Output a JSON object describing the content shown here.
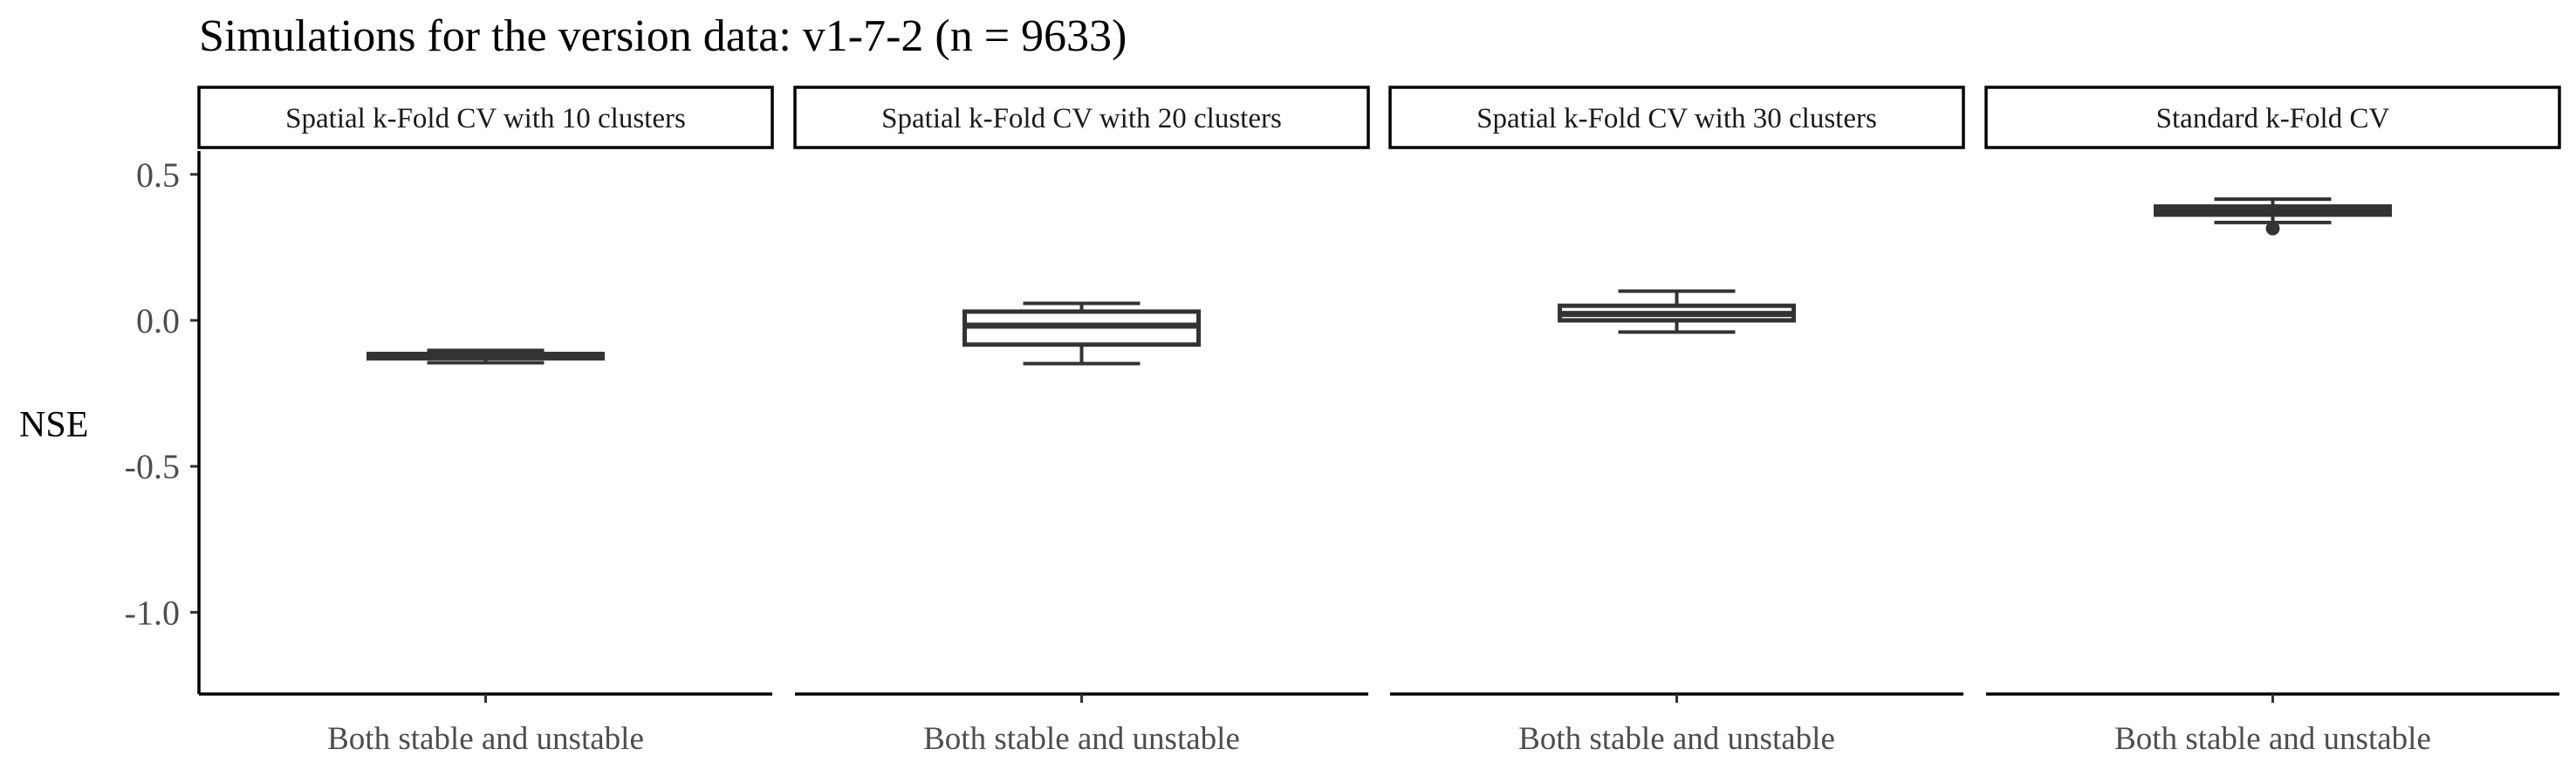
{
  "chart_data": {
    "type": "boxplot",
    "title": "Simulations for the version data: v1-7-2 (n = 9633)",
    "xlabel": "",
    "ylabel": "NSE",
    "ylim": [
      -1.28,
      0.58
    ],
    "yticks": [
      {
        "value": 0.5,
        "label": "0.5"
      },
      {
        "value": 0.0,
        "label": "0.0"
      },
      {
        "value": -0.5,
        "label": "-0.5"
      },
      {
        "value": -1.0,
        "label": "-1.0"
      }
    ],
    "grid": false,
    "facets": [
      {
        "label": "Spatial k-Fold CV with 10 clusters",
        "category": "Both stable and unstable",
        "box": {
          "whisker_low": -0.145,
          "q1": -0.13,
          "median": -0.122,
          "q3": -0.115,
          "whisker_high": -0.103,
          "outliers": []
        }
      },
      {
        "label": "Spatial k-Fold CV with 20 clusters",
        "category": "Both stable and unstable",
        "box": {
          "whisker_low": -0.148,
          "q1": -0.083,
          "median": -0.018,
          "q3": 0.03,
          "whisker_high": 0.058,
          "outliers": []
        }
      },
      {
        "label": "Spatial k-Fold CV with 30 clusters",
        "category": "Both stable and unstable",
        "box": {
          "whisker_low": -0.04,
          "q1": 0.0,
          "median": 0.022,
          "q3": 0.05,
          "whisker_high": 0.1,
          "outliers": []
        }
      },
      {
        "label": "Standard k-Fold CV",
        "category": "Both stable and unstable",
        "box": {
          "whisker_low": 0.335,
          "q1": 0.362,
          "median": 0.375,
          "q3": 0.39,
          "whisker_high": 0.415,
          "outliers": [
            0.315
          ]
        }
      }
    ]
  }
}
